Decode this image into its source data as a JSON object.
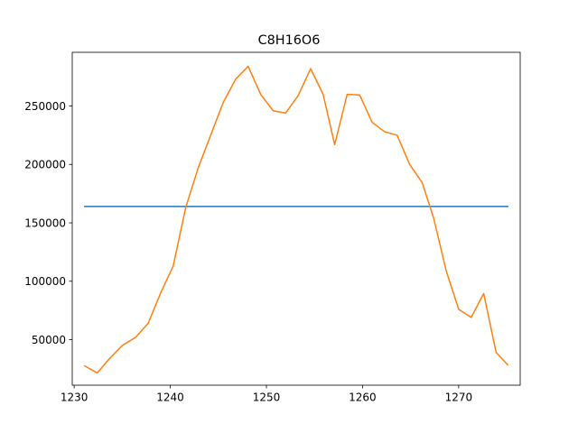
{
  "chart_data": {
    "type": "line",
    "title": "C8H16O6",
    "xlabel": "",
    "ylabel": "",
    "xlim": [
      1229.8,
      1276.4
    ],
    "ylim": [
      11000,
      296000
    ],
    "grid": false,
    "xticks": [
      1230,
      1240,
      1250,
      1260,
      1270
    ],
    "yticks": [
      50000,
      100000,
      150000,
      200000,
      250000
    ],
    "series": [
      {
        "color": "#1f77b4",
        "x": [
          1231.1,
          1275.1
        ],
        "y": [
          164000,
          164000
        ]
      },
      {
        "color": "#ff7f0e",
        "x": [
          1231.1,
          1232.4,
          1233.7,
          1235.0,
          1236.4,
          1237.7,
          1239.0,
          1240.3,
          1241.6,
          1242.9,
          1244.2,
          1245.5,
          1246.8,
          1248.1,
          1249.4,
          1250.7,
          1252.0,
          1253.3,
          1254.6,
          1255.9,
          1257.1,
          1258.4,
          1259.7,
          1261.0,
          1262.3,
          1263.6,
          1264.9,
          1266.2,
          1267.4,
          1268.7,
          1270.0,
          1271.3,
          1272.6,
          1273.9,
          1275.1
        ],
        "y": [
          27500,
          21500,
          34000,
          45000,
          52000,
          64000,
          90000,
          113000,
          163000,
          197000,
          225000,
          253000,
          273000,
          284000,
          260000,
          246000,
          244000,
          259000,
          282000,
          260000,
          217000,
          260000,
          259500,
          236000,
          228000,
          225000,
          200000,
          184500,
          154000,
          109000,
          76000,
          69000,
          89500,
          39000,
          28500
        ]
      }
    ]
  }
}
